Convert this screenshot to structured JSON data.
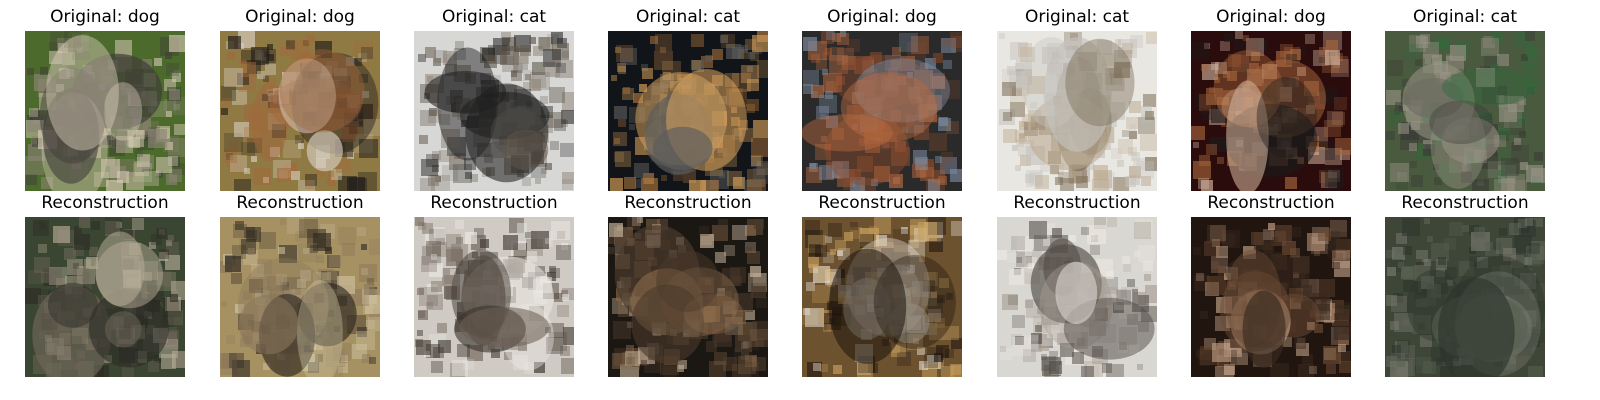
{
  "original_prefix": "Original: ",
  "reconstruction_label": "Reconstruction",
  "pairs": [
    {
      "label": "dog",
      "original": {
        "bg": "#4c6a2c",
        "fg": [
          "#d9cbb8",
          "#8f8578",
          "#3f3c38"
        ]
      },
      "reconstruction": {
        "bg": "#3a4631",
        "fg": [
          "#b7ad98",
          "#6e6558",
          "#2b2a25"
        ]
      }
    },
    {
      "label": "dog",
      "original": {
        "bg": "#8f7a43",
        "fg": [
          "#1f1b19",
          "#d9d0c1",
          "#a4673b"
        ]
      },
      "reconstruction": {
        "bg": "#a69163",
        "fg": [
          "#2c2620",
          "#8b775b",
          "#d0c4a3"
        ]
      }
    },
    {
      "label": "cat",
      "original": {
        "bg": "#d7d7d6",
        "fg": [
          "#5f5649",
          "#8e8578",
          "#1f1f1f"
        ]
      },
      "reconstruction": {
        "bg": "#cfcac4",
        "fg": [
          "#6d6155",
          "#3b342d",
          "#ebe8e3"
        ]
      }
    },
    {
      "label": "cat",
      "original": {
        "bg": "#111418",
        "fg": [
          "#d8a25c",
          "#b77d40",
          "#5c5c5c"
        ]
      },
      "reconstruction": {
        "bg": "#1b1713",
        "fg": [
          "#8a6a4b",
          "#4b3a2b",
          "#ccb8a0"
        ]
      }
    },
    {
      "label": "dog",
      "original": {
        "bg": "#2a2a2a",
        "fg": [
          "#b56a41",
          "#8a4b2d",
          "#7f8fa6"
        ]
      },
      "reconstruction": {
        "bg": "#6d5230",
        "fg": [
          "#1d140d",
          "#c7a05f",
          "#e6e0d5"
        ]
      }
    },
    {
      "label": "cat",
      "original": {
        "bg": "#e9e7e2",
        "fg": [
          "#7b6d57",
          "#b8a68a",
          "#c5c2bd"
        ]
      },
      "reconstruction": {
        "bg": "#d9d7d2",
        "fg": [
          "#504a44",
          "#a79f95",
          "#eeeae3"
        ]
      }
    },
    {
      "label": "dog",
      "original": {
        "bg": "#2b0c0c",
        "fg": [
          "#1b1b1b",
          "#a9683e",
          "#d3b39d"
        ]
      },
      "reconstruction": {
        "bg": "#20150f",
        "fg": [
          "#6b4a34",
          "#cba98e",
          "#3a2a1f"
        ]
      }
    },
    {
      "label": "cat",
      "original": {
        "bg": "#4a5a3f",
        "fg": [
          "#9a9487",
          "#3a3a36",
          "#2f6a3a"
        ]
      },
      "reconstruction": {
        "bg": "#3e4638",
        "fg": [
          "#7a7b70",
          "#56604f",
          "#2b332b"
        ]
      }
    }
  ]
}
